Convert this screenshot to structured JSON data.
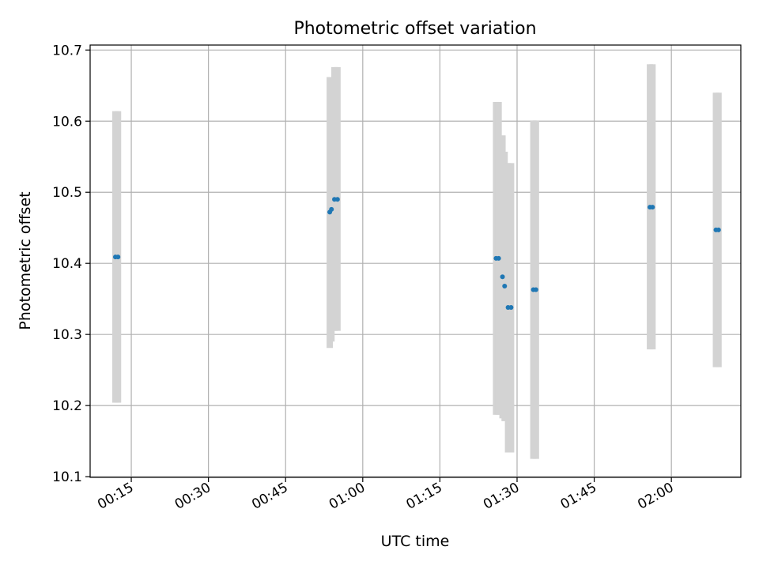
{
  "chart_data": {
    "type": "scatter",
    "title": "Photometric offset variation",
    "xlabel": "UTC time",
    "ylabel": "Photometric offset",
    "xlim": [
      "00:07:00",
      "02:13:30"
    ],
    "ylim": [
      10.099,
      10.707
    ],
    "xticks": [
      "00:15",
      "00:30",
      "00:45",
      "01:00",
      "01:15",
      "01:30",
      "01:45",
      "02:00"
    ],
    "yticks": [
      10.1,
      10.2,
      10.3,
      10.4,
      10.5,
      10.6,
      10.7
    ],
    "grid": true,
    "colors": {
      "point": "#1f77b4",
      "errorbar": "#d3d3d3",
      "grid": "#b0b0b0"
    },
    "points": [
      {
        "x": "00:11:55",
        "y": 10.409,
        "ymin": 10.204,
        "ymax": 10.614
      },
      {
        "x": "00:12:25",
        "y": 10.409,
        "ymin": 10.204,
        "ymax": 10.614
      },
      {
        "x": "00:53:35",
        "y": 10.472,
        "ymin": 10.281,
        "ymax": 10.662
      },
      {
        "x": "00:53:55",
        "y": 10.476,
        "ymin": 10.29,
        "ymax": 10.662
      },
      {
        "x": "00:54:30",
        "y": 10.49,
        "ymin": 10.305,
        "ymax": 10.676
      },
      {
        "x": "00:55:05",
        "y": 10.49,
        "ymin": 10.305,
        "ymax": 10.676
      },
      {
        "x": "01:25:55",
        "y": 10.407,
        "ymin": 10.187,
        "ymax": 10.627
      },
      {
        "x": "01:26:25",
        "y": 10.407,
        "ymin": 10.187,
        "ymax": 10.627
      },
      {
        "x": "01:27:10",
        "y": 10.381,
        "ymin": 10.182,
        "ymax": 10.58
      },
      {
        "x": "01:27:35",
        "y": 10.368,
        "ymin": 10.178,
        "ymax": 10.557
      },
      {
        "x": "01:28:15",
        "y": 10.338,
        "ymin": 10.134,
        "ymax": 10.541
      },
      {
        "x": "01:28:50",
        "y": 10.338,
        "ymin": 10.134,
        "ymax": 10.541
      },
      {
        "x": "01:33:10",
        "y": 10.363,
        "ymin": 10.125,
        "ymax": 10.601
      },
      {
        "x": "01:33:40",
        "y": 10.363,
        "ymin": 10.125,
        "ymax": 10.601
      },
      {
        "x": "01:55:50",
        "y": 10.479,
        "ymin": 10.279,
        "ymax": 10.68
      },
      {
        "x": "01:56:20",
        "y": 10.479,
        "ymin": 10.279,
        "ymax": 10.68
      },
      {
        "x": "02:08:40",
        "y": 10.447,
        "ymin": 10.254,
        "ymax": 10.64
      },
      {
        "x": "02:09:10",
        "y": 10.447,
        "ymin": 10.254,
        "ymax": 10.64
      }
    ]
  }
}
